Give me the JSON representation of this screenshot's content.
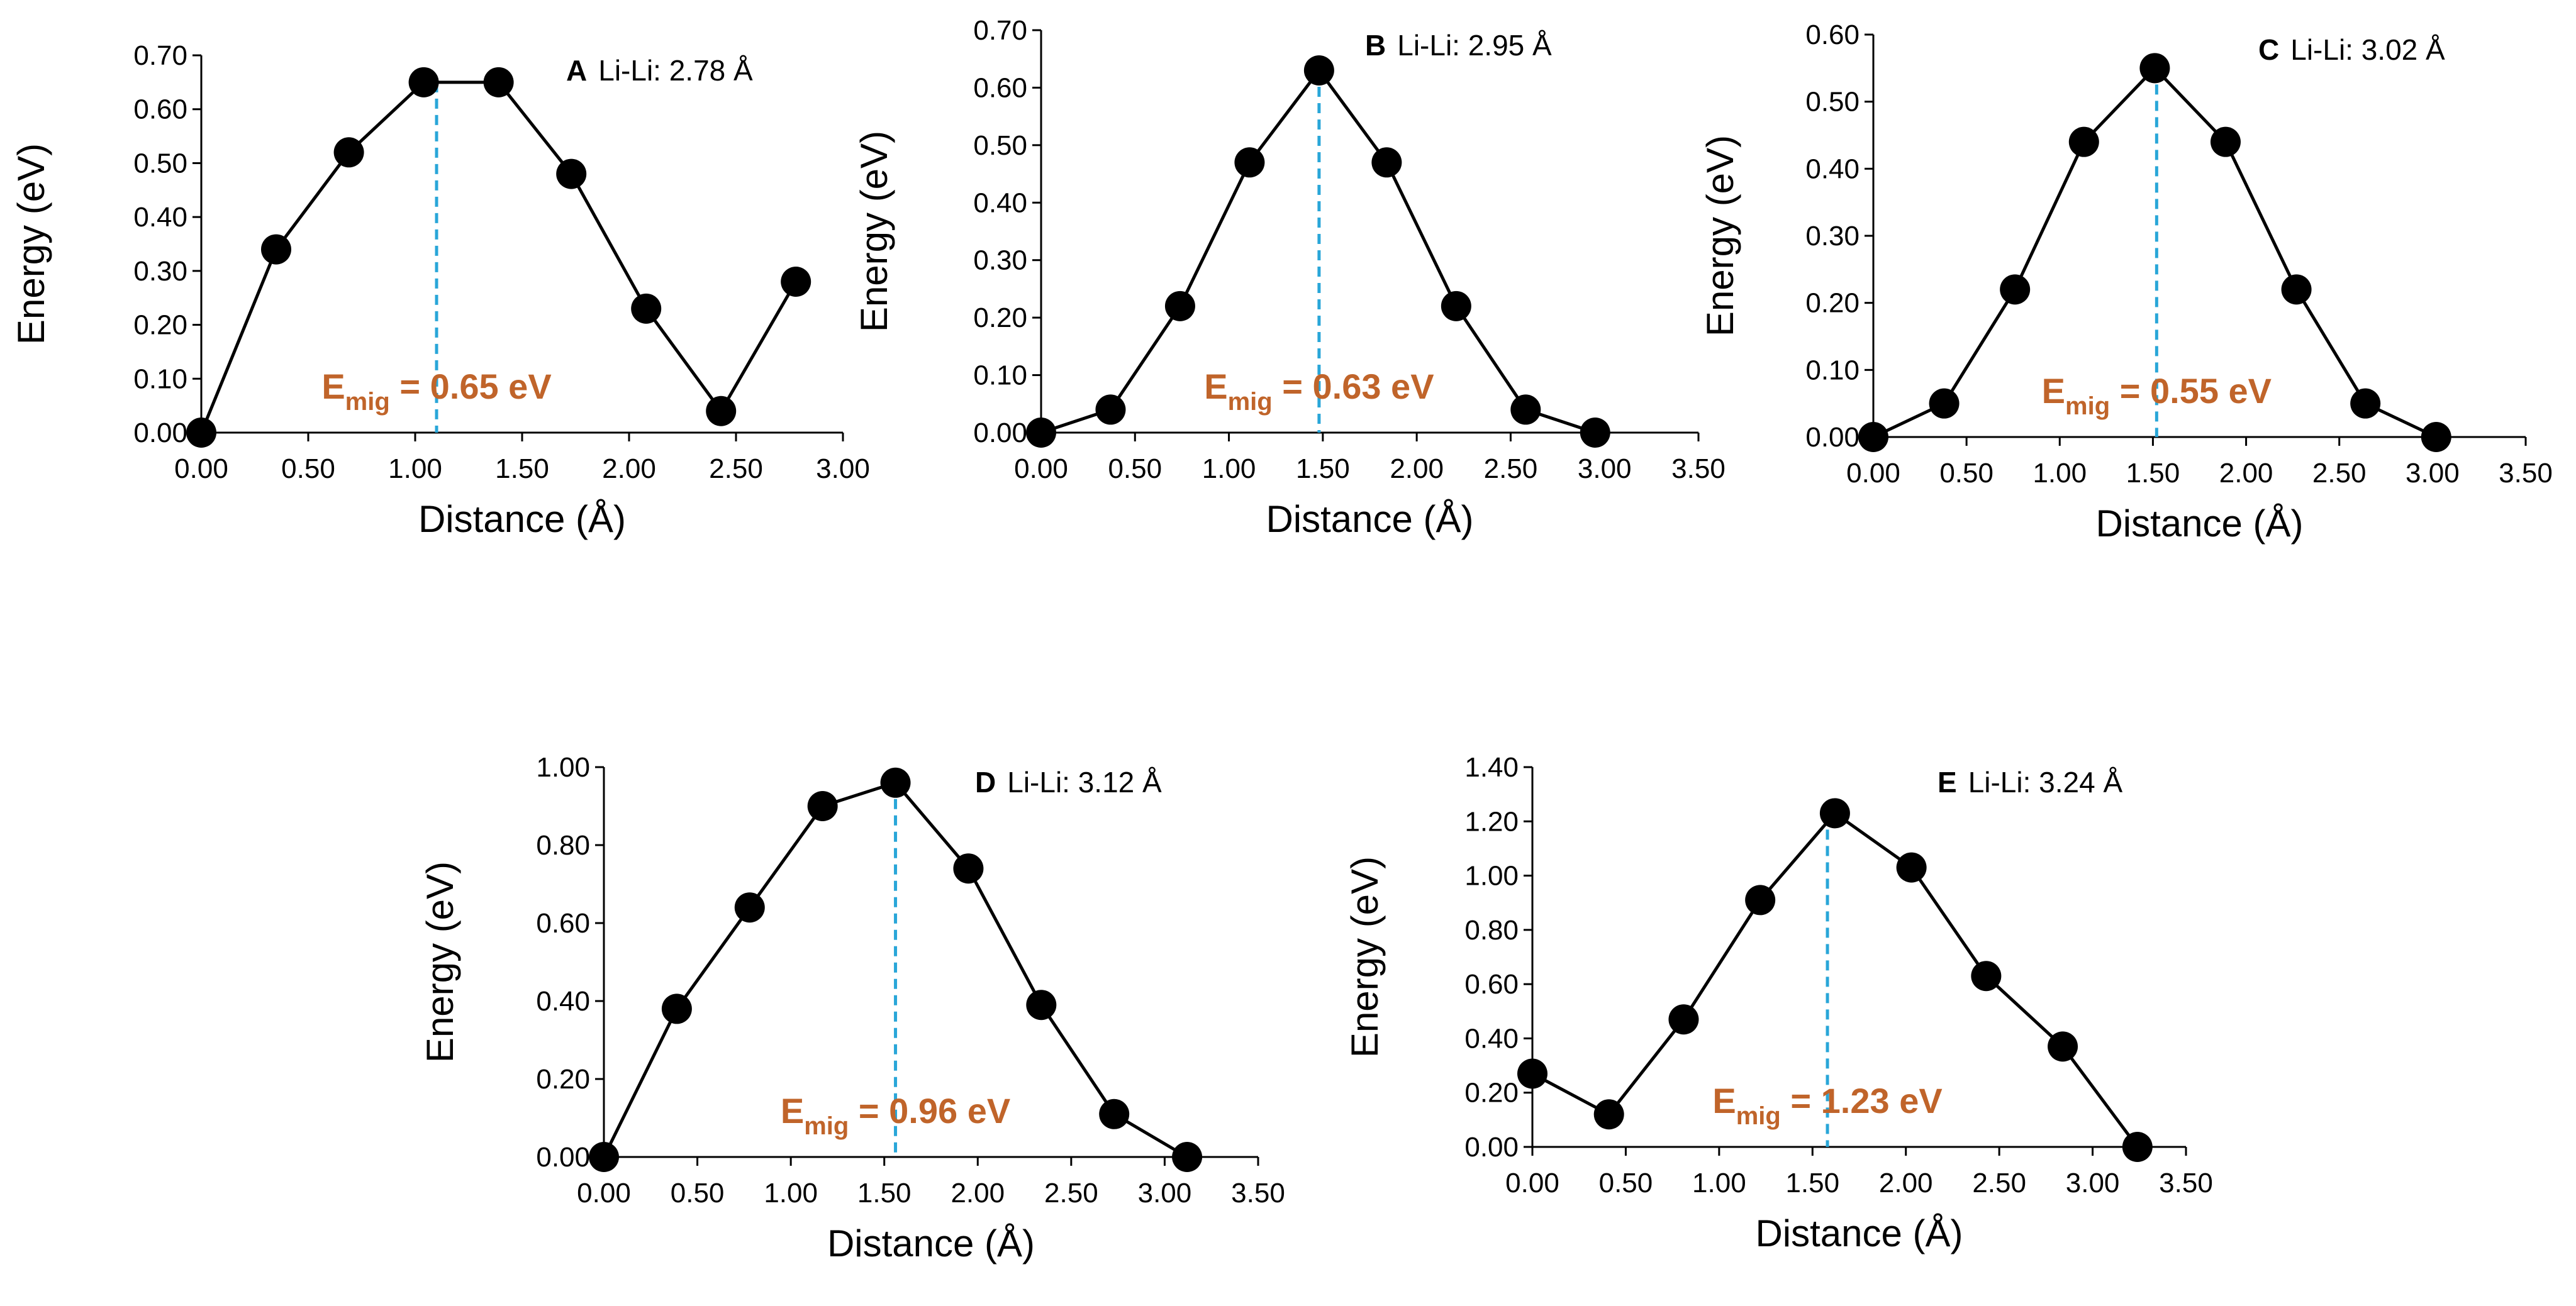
{
  "colors": {
    "axis": "#000000",
    "line": "#000000",
    "marker": "#000000",
    "barrier_line": "#29a6d8",
    "annotation": "#c0642a"
  },
  "chart_data": [
    {
      "type": "line",
      "panel_letter": "A",
      "title": "Li-Li: 2.78 Å",
      "xlabel": "Distance (Å)",
      "ylabel": "Energy (eV)",
      "xlim": [
        0,
        3.0
      ],
      "ylim": [
        0,
        0.7
      ],
      "xticks": [
        "0.00",
        "0.50",
        "1.00",
        "1.50",
        "2.00",
        "2.50",
        "3.00"
      ],
      "yticks": [
        "0.00",
        "0.10",
        "0.20",
        "0.30",
        "0.40",
        "0.50",
        "0.60",
        "0.70"
      ],
      "x": [
        0.0,
        0.35,
        0.69,
        1.04,
        1.39,
        1.73,
        2.08,
        2.43,
        2.78
      ],
      "y": [
        0.0,
        0.34,
        0.52,
        0.65,
        0.65,
        0.48,
        0.23,
        0.04,
        0.28
      ],
      "barrier_x": 1.1,
      "annotation": {
        "main": "E",
        "sub": "mig",
        "rest": " = 0.65 eV"
      }
    },
    {
      "type": "line",
      "panel_letter": "B",
      "title": "Li-Li: 2.95 Å",
      "xlabel": "Distance (Å)",
      "ylabel": "Energy (eV)",
      "xlim": [
        0,
        3.5
      ],
      "ylim": [
        0,
        0.7
      ],
      "xticks": [
        "0.00",
        "0.50",
        "1.00",
        "1.50",
        "2.00",
        "2.50",
        "3.00",
        "3.50"
      ],
      "yticks": [
        "0.00",
        "0.10",
        "0.20",
        "0.30",
        "0.40",
        "0.50",
        "0.60",
        "0.70"
      ],
      "x": [
        0.0,
        0.37,
        0.74,
        1.11,
        1.48,
        1.84,
        2.21,
        2.58,
        2.95
      ],
      "y": [
        0.0,
        0.04,
        0.22,
        0.47,
        0.63,
        0.47,
        0.22,
        0.04,
        0.0
      ],
      "barrier_x": 1.48,
      "annotation": {
        "main": "E",
        "sub": "mig",
        "rest": " = 0.63 eV"
      }
    },
    {
      "type": "line",
      "panel_letter": "C",
      "title": "Li-Li: 3.02 Å",
      "xlabel": "Distance (Å)",
      "ylabel": "Energy (eV)",
      "xlim": [
        0,
        3.5
      ],
      "ylim": [
        0,
        0.6
      ],
      "xticks": [
        "0.00",
        "0.50",
        "1.00",
        "1.50",
        "2.00",
        "2.50",
        "3.00",
        "3.50"
      ],
      "yticks": [
        "0.00",
        "0.10",
        "0.20",
        "0.30",
        "0.40",
        "0.50",
        "0.60"
      ],
      "x": [
        0.0,
        0.38,
        0.76,
        1.13,
        1.51,
        1.89,
        2.27,
        2.64,
        3.02
      ],
      "y": [
        0.0,
        0.05,
        0.22,
        0.44,
        0.55,
        0.44,
        0.22,
        0.05,
        0.0
      ],
      "barrier_x": 1.52,
      "annotation": {
        "main": "E",
        "sub": "mig",
        "rest": " = 0.55 eV"
      }
    },
    {
      "type": "line",
      "panel_letter": "D",
      "title": "Li-Li: 3.12 Å",
      "xlabel": "Distance (Å)",
      "ylabel": "Energy (eV)",
      "xlim": [
        0,
        3.5
      ],
      "ylim": [
        0,
        1.0
      ],
      "xticks": [
        "0.00",
        "0.50",
        "1.00",
        "1.50",
        "2.00",
        "2.50",
        "3.00",
        "3.50"
      ],
      "yticks": [
        "0.00",
        "0.20",
        "0.40",
        "0.60",
        "0.80",
        "1.00"
      ],
      "x": [
        0.0,
        0.39,
        0.78,
        1.17,
        1.56,
        1.95,
        2.34,
        2.73,
        3.12
      ],
      "y": [
        0.0,
        0.38,
        0.64,
        0.9,
        0.96,
        0.74,
        0.39,
        0.11,
        0.0
      ],
      "barrier_x": 1.56,
      "annotation": {
        "main": "E",
        "sub": "mig",
        "rest": " = 0.96 eV"
      }
    },
    {
      "type": "line",
      "panel_letter": "E",
      "title": "Li-Li: 3.24 Å",
      "xlabel": "Distance (Å)",
      "ylabel": "Energy (eV)",
      "xlim": [
        0,
        3.5
      ],
      "ylim": [
        0,
        1.4
      ],
      "xticks": [
        "0.00",
        "0.50",
        "1.00",
        "1.50",
        "2.00",
        "2.50",
        "3.00",
        "3.50"
      ],
      "yticks": [
        "0.00",
        "0.20",
        "0.40",
        "0.60",
        "0.80",
        "1.00",
        "1.20",
        "1.40"
      ],
      "x": [
        0.0,
        0.41,
        0.81,
        1.22,
        1.62,
        2.03,
        2.43,
        2.84,
        3.24
      ],
      "y": [
        0.27,
        0.12,
        0.47,
        0.91,
        1.23,
        1.03,
        0.63,
        0.37,
        0.0
      ],
      "barrier_x": 1.58,
      "annotation": {
        "main": "E",
        "sub": "mig",
        "rest": " = 1.23 eV"
      }
    }
  ]
}
